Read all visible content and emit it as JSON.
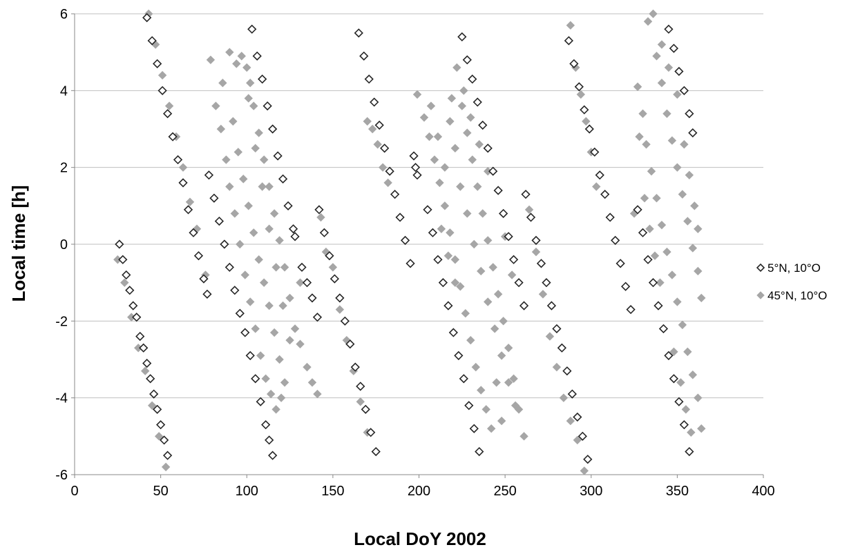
{
  "chart_data": {
    "type": "scatter",
    "x_label": "Local DoY 2002",
    "y_label": "Local time [h]",
    "xlim": [
      0,
      400
    ],
    "ylim": [
      -6,
      6
    ],
    "xticks": [
      0,
      50,
      100,
      150,
      200,
      250,
      300,
      350,
      400
    ],
    "yticks": [
      -6,
      -4,
      -2,
      0,
      2,
      4,
      6
    ],
    "grid": true,
    "legend": "right",
    "series": [
      {
        "name": "5°N, 10°O",
        "color": "#262626",
        "filled": false,
        "x": [
          26,
          28,
          30,
          32,
          34,
          36,
          38,
          40,
          42,
          44,
          46,
          48,
          50,
          52,
          54,
          42,
          45,
          48,
          51,
          54,
          57,
          60,
          63,
          66,
          69,
          72,
          75,
          77,
          78,
          81,
          84,
          87,
          90,
          93,
          96,
          99,
          102,
          105,
          108,
          111,
          113,
          115,
          103,
          106,
          109,
          112,
          115,
          118,
          121,
          124,
          127,
          128,
          132,
          135,
          138,
          141,
          142,
          145,
          148,
          151,
          154,
          157,
          160,
          163,
          166,
          169,
          172,
          175,
          165,
          168,
          171,
          174,
          177,
          180,
          183,
          186,
          189,
          192,
          195,
          197,
          198,
          199,
          205,
          208,
          211,
          214,
          217,
          220,
          223,
          226,
          229,
          232,
          235,
          225,
          228,
          231,
          234,
          237,
          240,
          243,
          246,
          249,
          252,
          255,
          258,
          261,
          262,
          265,
          268,
          271,
          274,
          277,
          280,
          283,
          286,
          289,
          292,
          295,
          298,
          287,
          290,
          293,
          296,
          299,
          302,
          305,
          308,
          311,
          314,
          317,
          320,
          323,
          327,
          330,
          333,
          336,
          339,
          342,
          345,
          348,
          351,
          354,
          357,
          345,
          348,
          351,
          354,
          357,
          359
        ],
        "values": [
          0,
          -0.4,
          -0.8,
          -1.2,
          -1.6,
          -1.9,
          -2.4,
          -2.7,
          -3.1,
          -3.5,
          -3.9,
          -4.3,
          -4.7,
          -5.1,
          -5.5,
          5.9,
          5.3,
          4.7,
          4,
          3.4,
          2.8,
          2.2,
          1.6,
          0.9,
          0.3,
          -0.3,
          -0.9,
          -1.3,
          1.8,
          1.2,
          0.6,
          0,
          -0.6,
          -1.2,
          -1.8,
          -2.3,
          -2.9,
          -3.5,
          -4.1,
          -4.7,
          -5.1,
          -5.5,
          5.6,
          4.9,
          4.3,
          3.6,
          3,
          2.3,
          1.7,
          1,
          0.4,
          0.2,
          -0.6,
          -1,
          -1.4,
          -1.9,
          0.9,
          0.3,
          -0.3,
          -0.9,
          -1.4,
          -2,
          -2.6,
          -3.2,
          -3.7,
          -4.3,
          -4.9,
          -5.4,
          5.5,
          4.9,
          4.3,
          3.7,
          3.1,
          2.5,
          1.9,
          1.3,
          0.7,
          0.1,
          -0.5,
          2.3,
          2,
          1.8,
          0.9,
          0.3,
          -0.4,
          -1,
          -1.6,
          -2.3,
          -2.9,
          -3.5,
          -4.2,
          -4.8,
          -5.4,
          5.4,
          4.8,
          4.3,
          3.7,
          3.1,
          2.5,
          1.9,
          1.4,
          0.8,
          0.2,
          -0.4,
          -1,
          -1.6,
          1.3,
          0.7,
          0.1,
          -0.5,
          -1,
          -1.6,
          -2.2,
          -2.7,
          -3.3,
          -3.9,
          -4.5,
          -5,
          -5.6,
          5.3,
          4.7,
          4.1,
          3.5,
          3,
          2.4,
          1.8,
          1.3,
          0.7,
          0.1,
          -0.5,
          -1.1,
          -1.7,
          0.9,
          0.3,
          -0.4,
          -1,
          -1.6,
          -2.2,
          -2.9,
          -3.5,
          -4.1,
          -4.7,
          -5.4,
          5.6,
          5.1,
          4.5,
          4,
          3.4,
          2.9
        ]
      },
      {
        "name": "45°N, 10°O",
        "color": "#a6a6a6",
        "filled": true,
        "x": [
          25,
          29,
          33,
          37,
          41,
          45,
          49,
          53,
          43,
          47,
          51,
          55,
          59,
          63,
          67,
          71,
          76,
          79,
          82,
          85,
          88,
          90,
          93,
          96,
          99,
          102,
          105,
          108,
          111,
          114,
          117,
          120,
          86,
          90,
          94,
          97,
          100,
          102,
          104,
          107,
          110,
          113,
          116,
          119,
          122,
          125,
          128,
          131,
          92,
          95,
          98,
          101,
          104,
          107,
          110,
          113,
          116,
          119,
          122,
          101,
          105,
          109,
          113,
          117,
          121,
          125,
          135,
          138,
          141,
          131,
          143,
          146,
          150,
          154,
          158,
          162,
          166,
          170,
          170,
          173,
          176,
          179,
          182,
          199,
          203,
          206,
          209,
          212,
          215,
          218,
          221,
          224,
          227,
          230,
          233,
          236,
          239,
          242,
          207,
          211,
          215,
          219,
          222,
          225,
          228,
          231,
          234,
          237,
          240,
          243,
          246,
          249,
          252,
          255,
          258,
          261,
          213,
          217,
          221,
          224,
          228,
          232,
          236,
          240,
          244,
          248,
          252,
          256,
          218,
          221,
          226,
          230,
          235,
          240,
          245,
          248,
          250,
          254,
          264,
          268,
          272,
          276,
          280,
          284,
          288,
          292,
          296,
          288,
          291,
          294,
          297,
          300,
          303,
          327,
          330,
          333,
          336,
          332,
          335,
          338,
          341,
          344,
          347,
          350,
          353,
          356,
          359,
          362,
          364,
          338,
          341,
          344,
          347,
          350,
          353,
          356,
          359,
          362,
          364,
          331,
          334,
          337,
          340,
          350,
          354,
          357,
          360,
          362,
          348,
          352,
          355,
          358,
          328,
          345,
          341,
          325
        ],
        "values": [
          -0.4,
          -1,
          -1.9,
          -2.7,
          -3.3,
          -4.2,
          -5,
          -5.8,
          6,
          5.2,
          4.4,
          3.6,
          2.8,
          2,
          1.1,
          0.4,
          -0.8,
          4.8,
          3.6,
          3,
          2.2,
          1.5,
          0.8,
          0,
          -0.8,
          -1.5,
          -2.2,
          -2.9,
          -3.5,
          -3.9,
          -4.3,
          -4,
          4.2,
          5,
          4.7,
          4.9,
          4.6,
          4.2,
          3.6,
          2.9,
          2.2,
          1.5,
          0.8,
          0.1,
          -0.6,
          -1.4,
          -2.2,
          -2.6,
          3.2,
          2.4,
          1.7,
          1,
          0.3,
          -0.4,
          -1,
          -1.6,
          -2.3,
          -3,
          -3.6,
          3.8,
          2.5,
          1.5,
          0.4,
          -0.6,
          -1.6,
          -2.5,
          -3.2,
          -3.6,
          -3.9,
          -1,
          0.7,
          -0.2,
          -0.6,
          -1.7,
          -2.5,
          -3.3,
          -4.1,
          -4.9,
          3.2,
          3,
          2.6,
          2,
          1.6,
          3.9,
          3.3,
          2.8,
          2.2,
          1.6,
          1,
          0.3,
          -0.4,
          -1.1,
          -1.8,
          -2.5,
          -3.2,
          -3.8,
          -4.3,
          -4.8,
          3.6,
          2.8,
          2,
          3.8,
          4.6,
          3.6,
          2.9,
          2.2,
          1.5,
          0.8,
          0.1,
          -0.6,
          -1.3,
          -2,
          -2.7,
          -3.5,
          -4.3,
          -5,
          0.4,
          -0.3,
          -1,
          1.5,
          0.8,
          0,
          -0.7,
          -1.5,
          -2.2,
          -2.9,
          -3.6,
          -4.2,
          3.2,
          2.5,
          4,
          3.3,
          2.6,
          1.9,
          -3.6,
          -4.6,
          0.2,
          -0.8,
          0.9,
          -0.2,
          -1.3,
          -2.4,
          -3.2,
          -4,
          -4.6,
          -5.1,
          -5.9,
          5.7,
          4.6,
          3.9,
          3.2,
          2.4,
          1.5,
          4.1,
          3.4,
          5.8,
          6,
          2.6,
          1.9,
          1.2,
          0.5,
          -0.2,
          -0.8,
          -1.5,
          -2.1,
          -2.8,
          -3.4,
          -4,
          -4.8,
          4.9,
          4.2,
          3.4,
          2.7,
          2,
          1.3,
          0.6,
          -0.1,
          -0.7,
          -1.4,
          1.2,
          0.4,
          -0.3,
          -1,
          3.9,
          2.6,
          1.8,
          1,
          0.4,
          -2.8,
          -3.6,
          -4.3,
          -4.9,
          2.8,
          4.6,
          5.2,
          0.8
        ]
      }
    ]
  }
}
